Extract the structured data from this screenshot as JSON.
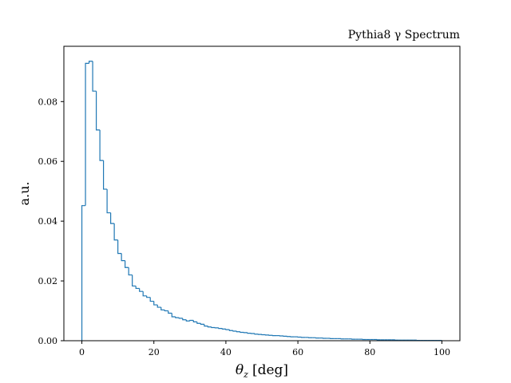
{
  "chart_data": {
    "type": "histogram",
    "title": "Pythia8 γ Spectrum",
    "xlabel_symbol": "θ",
    "xlabel_subscript": "z",
    "xlabel_unit": "[deg]",
    "ylabel": "a.u.",
    "xlim": [
      -5,
      105
    ],
    "ylim": [
      0,
      0.0985
    ],
    "xticks": [
      0,
      20,
      40,
      60,
      80,
      100
    ],
    "xtick_labels": [
      "0",
      "20",
      "40",
      "60",
      "80",
      "100"
    ],
    "yticks": [
      0,
      0.02,
      0.04,
      0.06,
      0.08
    ],
    "ytick_labels": [
      "0.00",
      "0.02",
      "0.04",
      "0.06",
      "0.08"
    ],
    "grid": false,
    "bin_width": 1,
    "bin_start": 0,
    "values": [
      0.0452,
      0.0928,
      0.0935,
      0.0835,
      0.0705,
      0.0603,
      0.0507,
      0.0428,
      0.0392,
      0.0337,
      0.0292,
      0.0268,
      0.0245,
      0.022,
      0.0183,
      0.0175,
      0.0165,
      0.015,
      0.0145,
      0.0132,
      0.012,
      0.0112,
      0.0103,
      0.01,
      0.0092,
      0.008,
      0.0077,
      0.0075,
      0.007,
      0.0066,
      0.0068,
      0.0063,
      0.0058,
      0.0055,
      0.0049,
      0.0046,
      0.0044,
      0.0043,
      0.0041,
      0.0039,
      0.0037,
      0.0034,
      0.0032,
      0.003,
      0.0028,
      0.0027,
      0.0025,
      0.0024,
      0.0022,
      0.0021,
      0.002,
      0.0019,
      0.0018,
      0.0017,
      0.0017,
      0.0016,
      0.0015,
      0.0014,
      0.0013,
      0.0013,
      0.0012,
      0.0011,
      0.0011,
      0.001,
      0.001,
      0.0009,
      0.0009,
      0.0008,
      0.0008,
      0.0007,
      0.0007,
      0.0007,
      0.0006,
      0.0006,
      0.0006,
      0.0005,
      0.0005,
      0.0005,
      0.0004,
      0.0004,
      0.0004,
      0.0004,
      0.0003,
      0.0003,
      0.0003,
      0.0003,
      0.0003,
      0.0002,
      0.0002,
      0.0002,
      0.0002,
      0.0002,
      0.0002,
      0.0001,
      0.0001,
      0.0001,
      0.0001,
      0.0001,
      0.0001,
      0.0001
    ],
    "colors": {
      "line": "#1f77b4",
      "axes": "#000000",
      "background": "#ffffff"
    }
  }
}
